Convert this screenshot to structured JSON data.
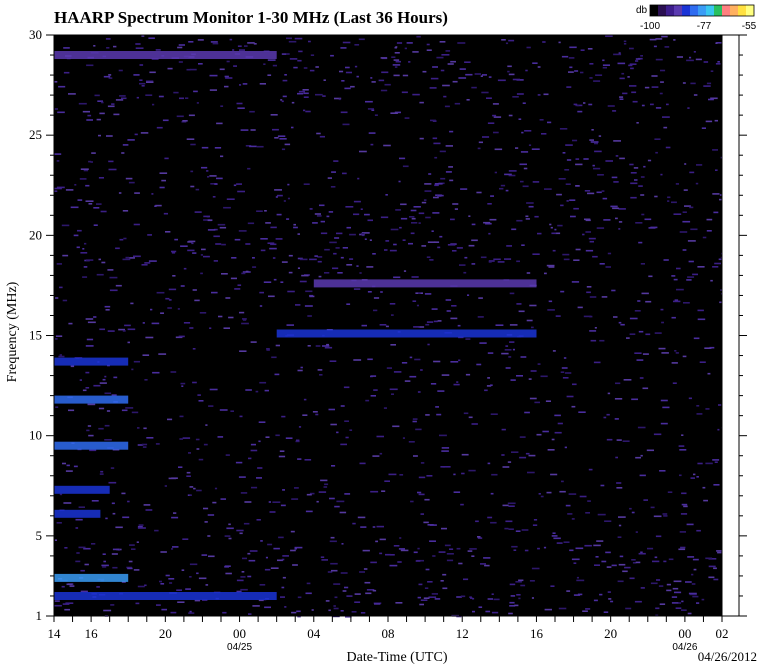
{
  "chart_data": {
    "type": "heatmap",
    "title": "HAARP Spectrum Monitor 1-30 MHz (Last 36 Hours)",
    "xlabel": "Date-Time (UTC)",
    "ylabel": "Frequency (MHz)",
    "date_stamp": "04/26/2012",
    "ylim": [
      1,
      30
    ],
    "y_ticks": [
      "1",
      "5",
      "10",
      "15",
      "20",
      "25",
      "30"
    ],
    "x_ticks": [
      "14",
      "16",
      "20",
      "00",
      "04",
      "08",
      "12",
      "16",
      "20",
      "00",
      "02"
    ],
    "x_date_labels": [
      {
        "tick": "00",
        "label": "04/25"
      },
      {
        "tick": "00",
        "label": "04/26"
      }
    ],
    "colorbar": {
      "label": "db",
      "min": -100,
      "mid": -77,
      "max": -55,
      "tick_labels": [
        "-100",
        "-77",
        "-55"
      ],
      "colors": [
        "#000000",
        "#2a0f52",
        "#3d1d8c",
        "#5a3ab0",
        "#1a34d6",
        "#2f6cf0",
        "#3a9cf5",
        "#39c7f0",
        "#28c060",
        "#ff8080",
        "#ffb060",
        "#ffe040",
        "#ffff80"
      ]
    },
    "bands": [
      {
        "freq_mhz": 2.0,
        "start": "14:00",
        "end": "02:00",
        "level_db": -85
      },
      {
        "freq_mhz": 2.9,
        "start": "14:00",
        "end": "18:00",
        "level_db": -78
      },
      {
        "freq_mhz": 6.1,
        "start": "14:00",
        "end": "16:30",
        "level_db": -85
      },
      {
        "freq_mhz": 7.3,
        "start": "14:00",
        "end": "17:00",
        "level_db": -86
      },
      {
        "freq_mhz": 9.5,
        "start": "14:00",
        "end": "18:00",
        "level_db": -82
      },
      {
        "freq_mhz": 11.8,
        "start": "14:00",
        "end": "18:00",
        "level_db": -80
      },
      {
        "freq_mhz": 13.7,
        "start": "14:00",
        "end": "18:00",
        "level_db": -86
      },
      {
        "freq_mhz": 15.1,
        "start": "02:00",
        "end": "16:00",
        "level_db": -86
      },
      {
        "freq_mhz": 17.6,
        "start": "04:00",
        "end": "16:00",
        "level_db": -90
      },
      {
        "freq_mhz": 29.0,
        "start": "14:00",
        "end": "02:00",
        "level_db": -88
      }
    ]
  }
}
